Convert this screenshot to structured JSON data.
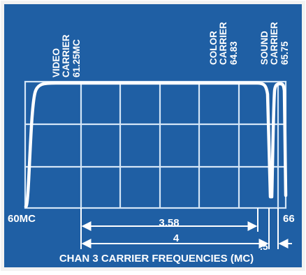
{
  "colors": {
    "background": "#1f5fa4",
    "panel": "#1a5597",
    "grid": "#d4e6f7",
    "trace": "#ffffff",
    "text": "#ffffff",
    "border": "#f2f2f2"
  },
  "labels": {
    "video_carrier": [
      "VIDEO",
      "CARRIER",
      "61.25MC"
    ],
    "color_carrier": [
      "COLOR",
      "CARRIER",
      "64.83"
    ],
    "sound_carrier": [
      "SOUND",
      "CARRIER",
      "65.75"
    ],
    "left_freq": "60MC",
    "right_freq": "66",
    "dim_color": "3.58",
    "dim_sound": "4",
    "dim_half": ".5",
    "caption": "CHAN 3 CARRIER FREQUENCIES (MC)"
  }
}
